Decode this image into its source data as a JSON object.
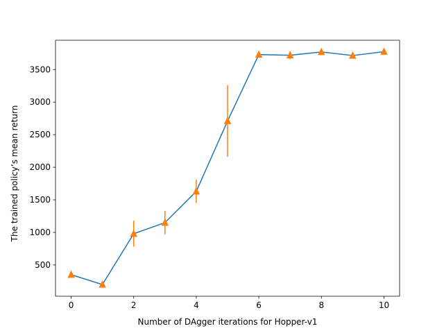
{
  "chart_data": {
    "type": "line",
    "xlabel": "Number of DAgger iterations for Hopper-v1",
    "ylabel": "The trained policy’s mean return",
    "xlim": [
      -0.5,
      10.5
    ],
    "ylim": [
      20,
      3950
    ],
    "xticks": [
      0,
      2,
      4,
      6,
      8,
      10
    ],
    "yticks": [
      500,
      1000,
      1500,
      2000,
      2500,
      3000,
      3500
    ],
    "grid": false,
    "legend": "none",
    "series": [
      {
        "kind": "line",
        "color": "#1f77b4",
        "x": [
          0,
          1,
          2,
          3,
          4,
          5,
          6,
          7,
          8,
          9,
          10
        ],
        "y": [
          350,
          200,
          980,
          1150,
          1630,
          2710,
          3730,
          3720,
          3770,
          3715,
          3775
        ]
      },
      {
        "kind": "errorbar",
        "marker": "triangle-up",
        "color": "#ff7f0e",
        "x": [
          0,
          1,
          2,
          3,
          4,
          5,
          6,
          7,
          8,
          9,
          10
        ],
        "y": [
          350,
          200,
          980,
          1150,
          1630,
          2710,
          3730,
          3720,
          3770,
          3715,
          3775
        ],
        "yerr": [
          0,
          0,
          200,
          180,
          180,
          550,
          0,
          60,
          0,
          0,
          0
        ]
      }
    ]
  }
}
